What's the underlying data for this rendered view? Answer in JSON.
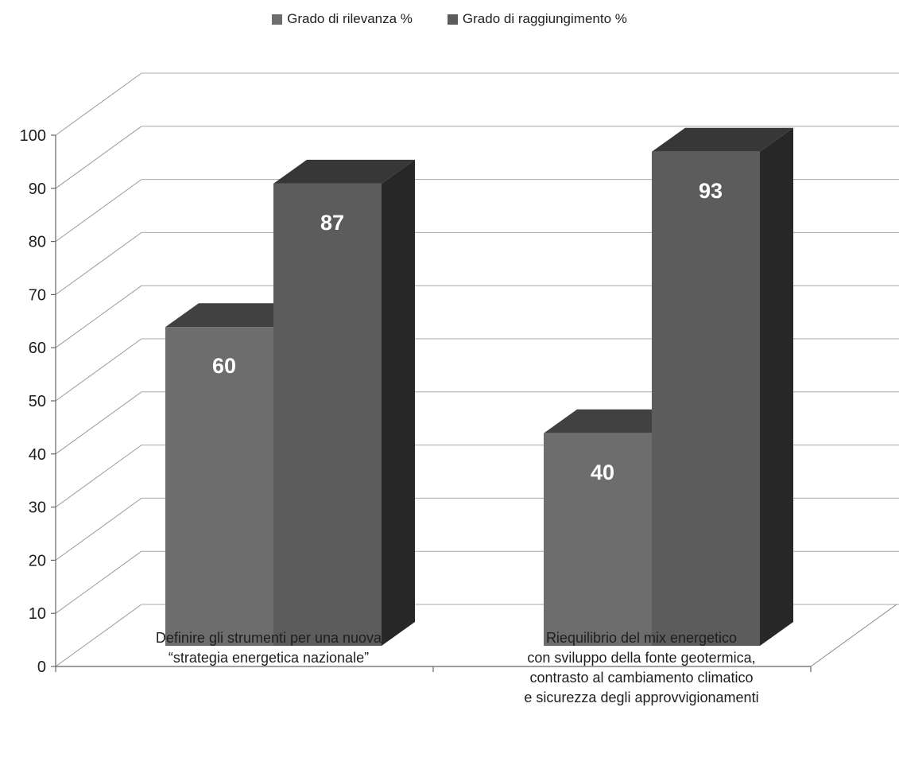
{
  "chart_data": {
    "type": "bar",
    "categories": [
      [
        "Definire gli strumenti per una nuova",
        "“strategia energetica nazionale”"
      ],
      [
        "Riequilibrio del mix energetico",
        "con sviluppo della fonte geotermica,",
        "contrasto al cambiamento climatico",
        "e sicurezza degli approvvigionamenti"
      ]
    ],
    "series": [
      {
        "name": "Grado di rilevanza %",
        "values": [
          60,
          40
        ],
        "color": "#6d6d6d"
      },
      {
        "name": "Grado di raggiungimento %",
        "values": [
          87,
          93
        ],
        "color": "#5c5c5c"
      }
    ],
    "y_ticks": [
      "0",
      "10",
      "20",
      "30",
      "40",
      "50",
      "60",
      "70",
      "80",
      "90",
      "100"
    ],
    "ylim": [
      0,
      100
    ],
    "grid": true,
    "legend_position": "top-center",
    "data_labels": true,
    "style": "3d-columns"
  }
}
